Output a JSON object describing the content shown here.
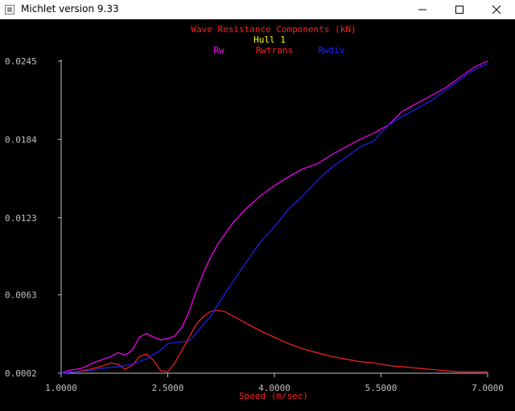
{
  "window": {
    "title": "Michlet version 9.33",
    "controls": [
      "minimize",
      "maximize",
      "close"
    ]
  },
  "colors": {
    "background": "#000000",
    "axis": "#c0c0c0",
    "tick_label": "#c0c0c0",
    "title": "#ff2020",
    "subtitle": "#ffff00",
    "xlabel": "#ff2020",
    "Rw": "#ff00ff",
    "Rwtrans": "#ff2020",
    "Rwdiv": "#2020ff"
  },
  "chart_data": {
    "type": "line",
    "title": "Wave Resistance Components (kN)",
    "subtitle": "Hull 1",
    "xlabel": "Speed (m/sec)",
    "ylabel": "",
    "xlim": [
      1.0,
      7.0
    ],
    "ylim": [
      0.0002,
      0.0245
    ],
    "x_ticks": [
      1.0,
      2.5,
      4.0,
      5.5,
      7.0
    ],
    "x_tick_labels": [
      "1.0000",
      "2.5000",
      "4.0000",
      "5.5000",
      "7.0000"
    ],
    "y_ticks": [
      0.0002,
      0.0063,
      0.0123,
      0.0184,
      0.0245
    ],
    "y_tick_labels": [
      "0.0002",
      "0.0063",
      "0.0123",
      "0.0184",
      "0.0245"
    ],
    "grid": false,
    "legend": "top-center",
    "series": [
      {
        "name": "Rw",
        "color": "#ff00ff",
        "points": [
          [
            1.0,
            0.0002
          ],
          [
            1.1,
            0.0004
          ],
          [
            1.3,
            0.0006
          ],
          [
            1.45,
            0.001
          ],
          [
            1.6,
            0.0013
          ],
          [
            1.7,
            0.0015
          ],
          [
            1.8,
            0.0018
          ],
          [
            1.9,
            0.0016
          ],
          [
            2.0,
            0.002
          ],
          [
            2.1,
            0.003
          ],
          [
            2.2,
            0.0033
          ],
          [
            2.3,
            0.003
          ],
          [
            2.4,
            0.0028
          ],
          [
            2.5,
            0.0029
          ],
          [
            2.6,
            0.0031
          ],
          [
            2.7,
            0.0038
          ],
          [
            2.8,
            0.005
          ],
          [
            2.9,
            0.0066
          ],
          [
            3.0,
            0.008
          ],
          [
            3.1,
            0.0092
          ],
          [
            3.2,
            0.0102
          ],
          [
            3.3,
            0.011
          ],
          [
            3.4,
            0.0118
          ],
          [
            3.6,
            0.013
          ],
          [
            3.8,
            0.014
          ],
          [
            4.0,
            0.0148
          ],
          [
            4.2,
            0.0155
          ],
          [
            4.4,
            0.0161
          ],
          [
            4.6,
            0.0165
          ],
          [
            4.8,
            0.0172
          ],
          [
            5.0,
            0.0178
          ],
          [
            5.2,
            0.0184
          ],
          [
            5.4,
            0.0189
          ],
          [
            5.6,
            0.0195
          ],
          [
            5.8,
            0.0206
          ],
          [
            6.0,
            0.0212
          ],
          [
            6.2,
            0.0218
          ],
          [
            6.4,
            0.0224
          ],
          [
            6.6,
            0.0232
          ],
          [
            6.8,
            0.024
          ],
          [
            7.0,
            0.0245
          ]
        ]
      },
      {
        "name": "Rwtrans",
        "color": "#ff2020",
        "points": [
          [
            1.0,
            0.0002
          ],
          [
            1.2,
            0.0003
          ],
          [
            1.4,
            0.0005
          ],
          [
            1.55,
            0.0007
          ],
          [
            1.7,
            0.001
          ],
          [
            1.8,
            0.0009
          ],
          [
            1.9,
            0.0005
          ],
          [
            2.0,
            0.0008
          ],
          [
            2.1,
            0.0015
          ],
          [
            2.2,
            0.0017
          ],
          [
            2.3,
            0.0012
          ],
          [
            2.4,
            0.0004
          ],
          [
            2.5,
            0.0003
          ],
          [
            2.6,
            0.001
          ],
          [
            2.7,
            0.002
          ],
          [
            2.8,
            0.003
          ],
          [
            2.9,
            0.004
          ],
          [
            3.0,
            0.0046
          ],
          [
            3.1,
            0.005
          ],
          [
            3.2,
            0.0051
          ],
          [
            3.3,
            0.005
          ],
          [
            3.4,
            0.0047
          ],
          [
            3.6,
            0.0041
          ],
          [
            3.8,
            0.0035
          ],
          [
            4.0,
            0.003
          ],
          [
            4.2,
            0.0025
          ],
          [
            4.4,
            0.0021
          ],
          [
            4.6,
            0.0018
          ],
          [
            4.8,
            0.0015
          ],
          [
            5.0,
            0.0013
          ],
          [
            5.2,
            0.0011
          ],
          [
            5.4,
            0.001
          ],
          [
            5.6,
            0.0008
          ],
          [
            5.8,
            0.0007
          ],
          [
            6.0,
            0.0006
          ],
          [
            6.2,
            0.0005
          ],
          [
            6.4,
            0.0004
          ],
          [
            6.6,
            0.0003
          ],
          [
            6.8,
            0.0003
          ],
          [
            7.0,
            0.0003
          ]
        ]
      },
      {
        "name": "Rwdiv",
        "color": "#2020ff",
        "points": [
          [
            1.0,
            0.0002
          ],
          [
            1.2,
            0.0003
          ],
          [
            1.4,
            0.0004
          ],
          [
            1.6,
            0.0006
          ],
          [
            1.8,
            0.0007
          ],
          [
            2.0,
            0.0009
          ],
          [
            2.2,
            0.0013
          ],
          [
            2.4,
            0.002
          ],
          [
            2.5,
            0.0025
          ],
          [
            2.6,
            0.0026
          ],
          [
            2.8,
            0.0027
          ],
          [
            2.9,
            0.0033
          ],
          [
            3.0,
            0.004
          ],
          [
            3.1,
            0.0046
          ],
          [
            3.2,
            0.0055
          ],
          [
            3.4,
            0.0072
          ],
          [
            3.6,
            0.0088
          ],
          [
            3.8,
            0.0104
          ],
          [
            4.0,
            0.0116
          ],
          [
            4.2,
            0.013
          ],
          [
            4.4,
            0.014
          ],
          [
            4.6,
            0.0152
          ],
          [
            4.8,
            0.0162
          ],
          [
            5.0,
            0.017
          ],
          [
            5.2,
            0.0178
          ],
          [
            5.4,
            0.0183
          ],
          [
            5.6,
            0.0195
          ],
          [
            5.8,
            0.0202
          ],
          [
            6.0,
            0.0208
          ],
          [
            6.2,
            0.0214
          ],
          [
            6.4,
            0.0222
          ],
          [
            6.6,
            0.023
          ],
          [
            6.8,
            0.0238
          ],
          [
            7.0,
            0.0243
          ]
        ]
      }
    ]
  }
}
